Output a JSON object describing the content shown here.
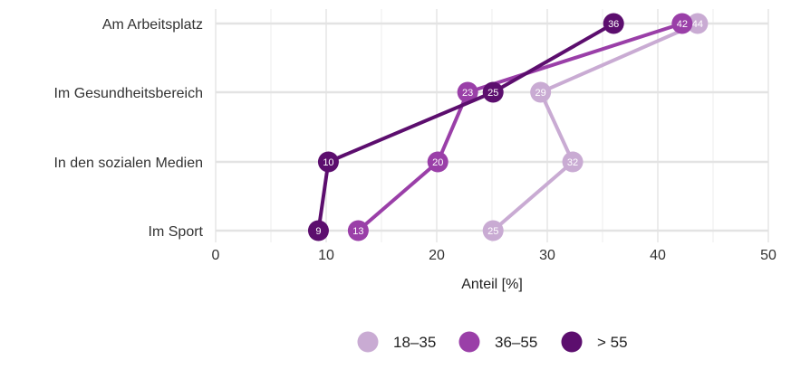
{
  "chart_data": {
    "type": "line",
    "categories": [
      "Am Arbeitsplatz",
      "Im Gesundheitsbereich",
      "In den sozialen Medien",
      "Im Sport"
    ],
    "series": [
      {
        "name": "18–35",
        "color": "#c9abd3",
        "values": [
          44,
          29,
          32,
          25
        ]
      },
      {
        "name": "36–55",
        "color": "#9a3fa8",
        "values": [
          42,
          23,
          20,
          13
        ]
      },
      {
        "name": "> 55",
        "color": "#5c0e6e",
        "values": [
          36,
          25,
          10,
          9
        ]
      }
    ],
    "x_values": [
      [
        43.6,
        29.4,
        32.3,
        25.1
      ],
      [
        42.2,
        22.8,
        20.1,
        12.9
      ],
      [
        36.0,
        25.1,
        10.2,
        9.3
      ]
    ],
    "xlabel": "Anteil [%]",
    "ylabel": "",
    "xlim": [
      0,
      50
    ],
    "xticks": [
      0,
      10,
      20,
      30,
      40,
      50
    ],
    "grid": true,
    "legend_position": "bottom"
  }
}
